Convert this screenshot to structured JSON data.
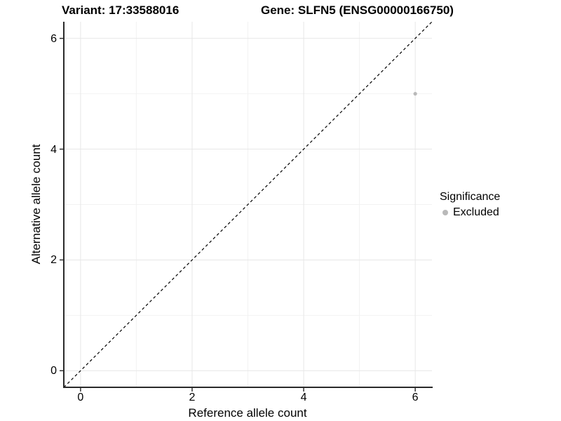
{
  "chart_data": {
    "type": "scatter",
    "title_left": "Variant: 17:33588016",
    "title_right": "Gene: SLFN5 (ENSG00000166750)",
    "xlabel": "Reference allele count",
    "ylabel": "Alternative allele count",
    "xlim": [
      -0.3,
      6.3
    ],
    "ylim": [
      -0.3,
      6.3
    ],
    "xticks": [
      0,
      2,
      4,
      6
    ],
    "yticks": [
      0,
      2,
      4,
      6
    ],
    "xticks_minor": [
      1,
      3,
      5
    ],
    "yticks_minor": [
      1,
      3,
      5
    ],
    "grid": true,
    "points": [
      {
        "x": 6,
        "y": 5,
        "series": "Excluded"
      }
    ],
    "reference_line": {
      "type": "identity",
      "style": "dashed",
      "color": "#000000"
    },
    "legend": {
      "title": "Significance",
      "position": "right",
      "items": [
        {
          "label": "Excluded",
          "color": "#b9b9b9",
          "marker": "circle"
        }
      ]
    },
    "colors": {
      "point": "#b9b9b9",
      "grid_major": "#e7e7e7",
      "grid_minor": "#f2f2f2",
      "axis_line": "#2a2a2a",
      "tick_mark": "#333333",
      "text": "#000000"
    }
  }
}
